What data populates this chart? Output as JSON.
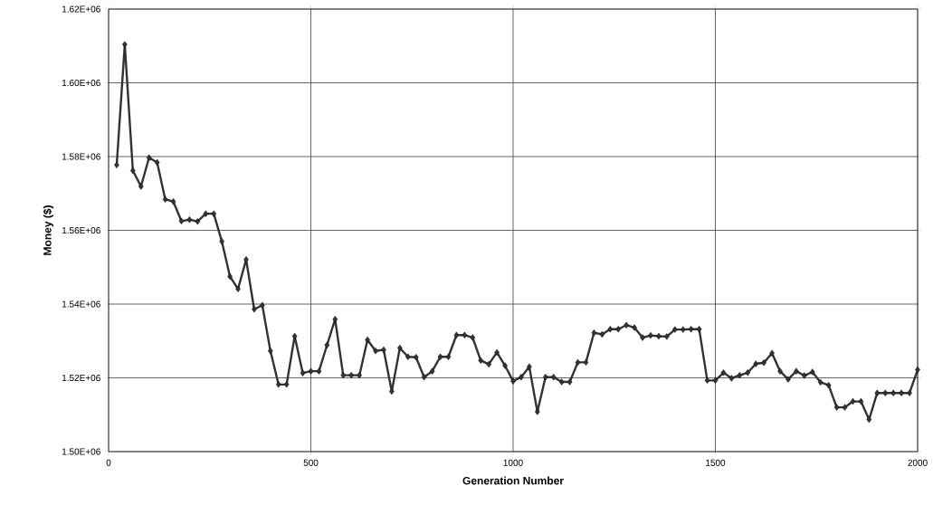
{
  "chart_data": {
    "type": "line",
    "xlabel": "Generation Number",
    "ylabel": "Money ($)",
    "x": [
      20,
      40,
      60,
      80,
      100,
      120,
      140,
      160,
      180,
      200,
      220,
      240,
      260,
      280,
      300,
      320,
      340,
      360,
      380,
      400,
      420,
      440,
      460,
      480,
      500,
      520,
      540,
      560,
      580,
      600,
      620,
      640,
      660,
      680,
      700,
      720,
      740,
      760,
      780,
      800,
      820,
      840,
      860,
      880,
      900,
      920,
      940,
      960,
      980,
      1000,
      1020,
      1040,
      1060,
      1080,
      1100,
      1120,
      1140,
      1160,
      1180,
      1200,
      1220,
      1240,
      1260,
      1280,
      1300,
      1320,
      1340,
      1360,
      1380,
      1400,
      1420,
      1440,
      1460,
      1480,
      1500,
      1520,
      1540,
      1560,
      1580,
      1600,
      1620,
      1640,
      1660,
      1680,
      1700,
      1720,
      1740,
      1760,
      1780,
      1800,
      1820,
      1840,
      1860,
      1880,
      1900,
      1920,
      1940,
      1960,
      1980,
      2000
    ],
    "series": [
      {
        "color": "#333333",
        "values": [
          1577700,
          1610400,
          1576200,
          1571900,
          1579700,
          1578400,
          1568400,
          1567800,
          1562500,
          1562900,
          1562400,
          1564500,
          1564500,
          1557000,
          1547500,
          1544100,
          1552100,
          1538600,
          1539700,
          1527300,
          1518200,
          1518200,
          1531300,
          1521300,
          1521800,
          1521800,
          1528900,
          1535900,
          1520700,
          1520700,
          1520700,
          1530300,
          1527300,
          1527600,
          1516300,
          1528100,
          1525700,
          1525600,
          1520200,
          1521800,
          1525700,
          1525700,
          1531600,
          1531600,
          1530900,
          1524700,
          1523700,
          1526900,
          1523300,
          1519100,
          1520200,
          1523000,
          1510800,
          1520200,
          1520200,
          1518900,
          1518900,
          1524200,
          1524200,
          1532200,
          1531800,
          1533200,
          1533200,
          1534300,
          1533600,
          1530900,
          1531500,
          1531300,
          1531200,
          1533100,
          1533100,
          1533200,
          1533200,
          1519300,
          1519300,
          1521400,
          1519900,
          1520700,
          1521400,
          1523800,
          1524100,
          1526700,
          1521800,
          1519600,
          1521800,
          1520600,
          1521600,
          1518800,
          1518000,
          1512000,
          1512000,
          1513600,
          1513600,
          1508700,
          1515900,
          1515900,
          1515900,
          1515900,
          1515900,
          1522200
        ]
      }
    ],
    "xlim": [
      0,
      2000
    ],
    "xticks": [
      0,
      500,
      1000,
      1500,
      2000
    ],
    "ylim": [
      1500000,
      1620000
    ],
    "yticks": [
      {
        "value": 1500000,
        "label": "1.50E+06"
      },
      {
        "value": 1520000,
        "label": "1.52E+06"
      },
      {
        "value": 1540000,
        "label": "1.54E+06"
      },
      {
        "value": 1560000,
        "label": "1.56E+06"
      },
      {
        "value": 1580000,
        "label": "1.58E+06"
      },
      {
        "value": 1600000,
        "label": "1.60E+06"
      },
      {
        "value": 1620000,
        "label": "1.62E+06"
      }
    ],
    "grid": true,
    "marker": "diamond",
    "line_style": "solid"
  }
}
